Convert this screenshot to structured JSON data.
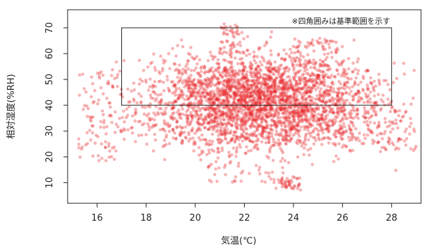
{
  "chart_data": {
    "type": "scatter",
    "title": "",
    "xlabel": "気温(℃)",
    "ylabel": "相対湿度(%RH)",
    "xlim": [
      14.8,
      29.2
    ],
    "ylim": [
      2,
      77
    ],
    "x_ticks": [
      16,
      18,
      20,
      22,
      24,
      26,
      28
    ],
    "y_ticks": [
      10,
      20,
      30,
      40,
      50,
      60,
      70
    ],
    "x_tick_labels": [
      "16",
      "18",
      "20",
      "22",
      "24",
      "26",
      "28"
    ],
    "y_tick_labels": [
      "10",
      "20",
      "30",
      "40",
      "50",
      "60",
      "70"
    ],
    "grid": false,
    "series": [
      {
        "color": "#e8282c",
        "x_range": [
          15.2,
          29.0
        ],
        "y_range": [
          7,
          74
        ],
        "center": [
          22.8,
          42
        ],
        "regions": [
          {
            "x": [
              19.5,
              25.5
            ],
            "y": [
              32,
              55
            ]
          },
          {
            "x": [
              17,
              27.5
            ],
            "y": [
              25,
              50
            ]
          },
          {
            "x": [
              20.5,
              24
            ],
            "y": [
              10,
              30
            ]
          },
          {
            "x": [
              21,
              22
            ],
            "y": [
              60,
              72
            ]
          },
          {
            "x": [
              24,
              26
            ],
            "y": [
              55,
              66
            ]
          },
          {
            "x": [
              15.2,
              17
            ],
            "y": [
              18,
              54
            ]
          },
          {
            "x": [
              27,
              29
            ],
            "y": [
              22,
              40
            ]
          },
          {
            "x": [
              23.2,
              24.3
            ],
            "y": [
              7,
              12
            ]
          }
        ]
      }
    ],
    "reference_box": {
      "x": [
        17,
        28
      ],
      "y": [
        40,
        70
      ],
      "label": "※四角囲みは基準範囲を示す"
    }
  }
}
